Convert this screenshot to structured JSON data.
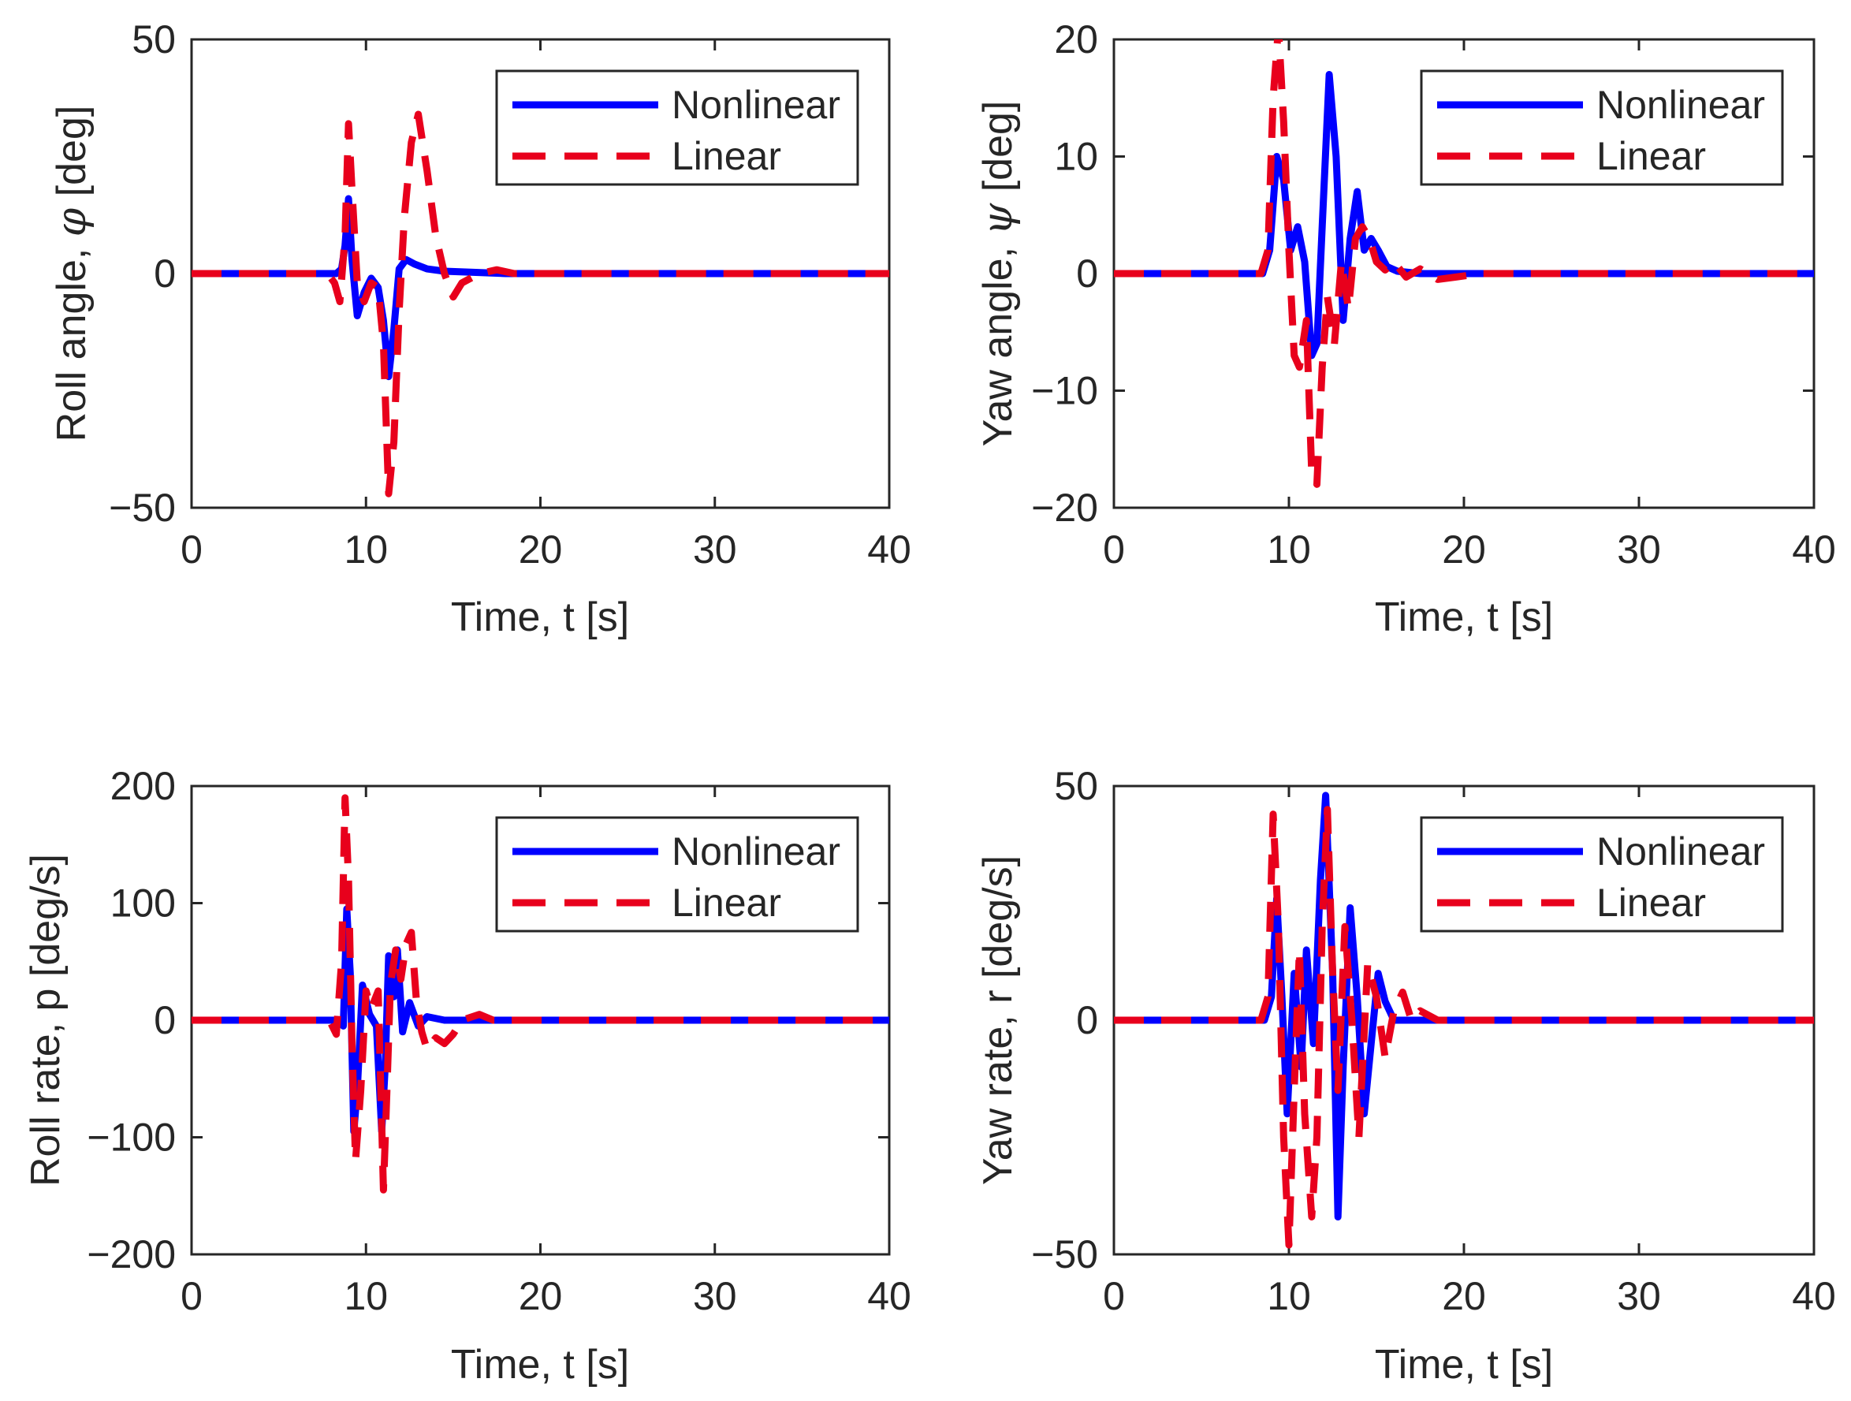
{
  "figure": {
    "panel_count": 4,
    "style": "MATLAB subplot 2x2"
  },
  "colors": {
    "nonlinear": "#0000ff",
    "linear": "#e8001c",
    "axes": "#262626",
    "legend_border": "#262626"
  },
  "chart_data": [
    {
      "type": "line",
      "id": "roll-angle",
      "ylabel_prefix": "Roll angle, ",
      "ylabel_symbol": "φ",
      "ylabel_unit": " [deg]",
      "xlabel": "Time, t [s]",
      "xlim": [
        0,
        40
      ],
      "ylim": [
        -50,
        50
      ],
      "xticks": [
        0,
        10,
        20,
        30,
        40
      ],
      "yticks": [
        -50,
        0,
        50
      ],
      "ytick_labels": [
        "−50",
        "0",
        "50"
      ],
      "legend": {
        "placement": "top-right",
        "entries": [
          "Nonlinear",
          "Linear"
        ]
      },
      "series": [
        {
          "name": "Nonlinear",
          "style": "solid",
          "x": [
            0,
            8.3,
            8.6,
            8.8,
            9.0,
            9.2,
            9.5,
            9.9,
            10.3,
            10.7,
            11.0,
            11.3,
            11.6,
            11.9,
            12.3,
            12.8,
            13.5,
            14.5,
            16,
            18,
            40
          ],
          "y": [
            0,
            0,
            1,
            6,
            16,
            3,
            -9,
            -4,
            -1,
            -3,
            -10,
            -22,
            -12,
            1,
            3,
            2,
            1,
            0.5,
            0.3,
            0,
            0
          ]
        },
        {
          "name": "Linear",
          "style": "dashed",
          "x": [
            0,
            7.8,
            8.2,
            8.5,
            8.8,
            9.0,
            9.2,
            9.5,
            9.9,
            10.3,
            10.7,
            11.0,
            11.3,
            11.6,
            11.9,
            12.2,
            12.6,
            13.0,
            13.5,
            14.0,
            14.5,
            15.0,
            15.5,
            16.5,
            17.5,
            18.5,
            40
          ],
          "y": [
            0,
            0,
            -2,
            -6,
            8,
            32,
            18,
            -2,
            -6,
            -2,
            -3,
            -15,
            -47,
            -36,
            -8,
            12,
            28,
            34,
            22,
            8,
            0,
            -5,
            -2,
            0,
            0.8,
            0,
            0
          ]
        }
      ]
    },
    {
      "type": "line",
      "id": "yaw-angle",
      "ylabel_prefix": "Yaw angle, ",
      "ylabel_symbol": "ψ",
      "ylabel_unit": " [deg]",
      "xlabel": "Time, t [s]",
      "xlim": [
        0,
        40
      ],
      "ylim": [
        -20,
        20
      ],
      "xticks": [
        0,
        10,
        20,
        30,
        40
      ],
      "yticks": [
        -20,
        -10,
        0,
        10,
        20
      ],
      "ytick_labels": [
        "−20",
        "−10",
        "0",
        "10",
        "20"
      ],
      "legend": {
        "placement": "top-right",
        "entries": [
          "Nonlinear",
          "Linear"
        ]
      },
      "series": [
        {
          "name": "Nonlinear",
          "style": "solid",
          "x": [
            0,
            8.5,
            8.9,
            9.3,
            9.7,
            10.1,
            10.5,
            10.9,
            11.3,
            11.6,
            11.9,
            12.3,
            12.7,
            13.1,
            13.5,
            13.9,
            14.3,
            14.7,
            15.1,
            15.6,
            16.2,
            17.5,
            40
          ],
          "y": [
            0,
            0,
            2,
            10,
            8,
            2,
            4,
            1,
            -7,
            -6,
            4,
            17,
            10,
            -4,
            3,
            7,
            2,
            3,
            2,
            0.6,
            0.2,
            0,
            0
          ]
        },
        {
          "name": "Linear",
          "style": "dashed",
          "x": [
            0,
            8.4,
            8.8,
            9.1,
            9.4,
            9.7,
            10.0,
            10.3,
            10.6,
            11.0,
            11.3,
            11.6,
            11.9,
            12.2,
            12.6,
            13.0,
            13.4,
            13.8,
            14.2,
            14.6,
            15.0,
            15.5,
            16.0,
            16.7,
            17.5,
            18.5,
            19.5,
            21,
            40
          ],
          "y": [
            0,
            0,
            2,
            15,
            21,
            13,
            2,
            -7,
            -8,
            -4,
            -17,
            -18,
            -8,
            -2,
            -6,
            1,
            -3,
            3,
            4,
            3,
            1,
            0.3,
            1,
            -0.3,
            0.4,
            -0.5,
            -0.3,
            0,
            0
          ]
        }
      ]
    },
    {
      "type": "line",
      "id": "roll-rate",
      "ylabel_prefix": "Roll rate, p",
      "ylabel_symbol": "",
      "ylabel_unit": " [deg/s]",
      "xlabel": "Time, t [s]",
      "xlim": [
        0,
        40
      ],
      "ylim": [
        -200,
        200
      ],
      "xticks": [
        0,
        10,
        20,
        30,
        40
      ],
      "yticks": [
        -200,
        -100,
        0,
        100,
        200
      ],
      "ytick_labels": [
        "−200",
        "−100",
        "0",
        "100",
        "200"
      ],
      "legend": {
        "placement": "top-right",
        "entries": [
          "Nonlinear",
          "Linear"
        ]
      },
      "series": [
        {
          "name": "Nonlinear",
          "style": "solid",
          "x": [
            0,
            8.4,
            8.7,
            8.9,
            9.1,
            9.3,
            9.5,
            9.8,
            10.2,
            10.6,
            10.9,
            11.1,
            11.3,
            11.6,
            11.8,
            12.1,
            12.5,
            13.0,
            13.5,
            14.5,
            16,
            40
          ],
          "y": [
            0,
            0,
            -5,
            95,
            40,
            -95,
            -60,
            30,
            5,
            -5,
            -95,
            -40,
            55,
            20,
            60,
            -10,
            15,
            -5,
            3,
            0,
            0,
            0
          ]
        },
        {
          "name": "Linear",
          "style": "dashed",
          "x": [
            0,
            7.9,
            8.3,
            8.6,
            8.8,
            9.0,
            9.2,
            9.4,
            9.7,
            10.0,
            10.3,
            10.7,
            11.0,
            11.2,
            11.4,
            11.7,
            12.0,
            12.3,
            12.6,
            12.9,
            13.2,
            13.5,
            14.0,
            14.5,
            15.0,
            15.5,
            16.5,
            17.3,
            18.5,
            40
          ],
          "y": [
            0,
            0,
            -12,
            50,
            190,
            120,
            -20,
            -120,
            -60,
            25,
            10,
            25,
            -145,
            -60,
            30,
            60,
            35,
            65,
            75,
            15,
            -10,
            -25,
            -15,
            -20,
            -12,
            0,
            5,
            0,
            0,
            0
          ]
        }
      ]
    },
    {
      "type": "line",
      "id": "yaw-rate",
      "ylabel_prefix": "Yaw rate, r",
      "ylabel_symbol": "",
      "ylabel_unit": " [deg/s]",
      "xlabel": "Time, t [s]",
      "xlim": [
        0,
        40
      ],
      "ylim": [
        -50,
        50
      ],
      "xticks": [
        0,
        10,
        20,
        30,
        40
      ],
      "yticks": [
        -50,
        0,
        50
      ],
      "ytick_labels": [
        "−50",
        "0",
        "50"
      ],
      "legend": {
        "placement": "top-right",
        "entries": [
          "Nonlinear",
          "Linear"
        ]
      },
      "series": [
        {
          "name": "Nonlinear",
          "style": "solid",
          "x": [
            0,
            8.6,
            9.0,
            9.3,
            9.6,
            9.9,
            10.3,
            10.7,
            11.0,
            11.4,
            11.8,
            12.1,
            12.5,
            12.8,
            13.1,
            13.5,
            13.9,
            14.3,
            14.7,
            15.1,
            15.5,
            16.0,
            17.0,
            40
          ],
          "y": [
            0,
            0,
            5,
            26,
            5,
            -20,
            10,
            -10,
            15,
            -5,
            30,
            48,
            10,
            -42,
            -10,
            24,
            5,
            -20,
            -5,
            10,
            4,
            0,
            0,
            0
          ]
        },
        {
          "name": "Linear",
          "style": "dashed",
          "x": [
            0,
            8.4,
            8.8,
            9.1,
            9.4,
            9.7,
            10.0,
            10.3,
            10.6,
            10.9,
            11.3,
            11.6,
            11.9,
            12.2,
            12.5,
            12.8,
            13.2,
            13.6,
            14.0,
            14.5,
            15.0,
            15.5,
            16.0,
            16.5,
            17.0,
            17.5,
            18.5,
            40
          ],
          "y": [
            0,
            0,
            5,
            44,
            20,
            -25,
            -48,
            -15,
            15,
            -20,
            -42,
            -25,
            20,
            45,
            10,
            -15,
            20,
            0,
            -25,
            12,
            5,
            -8,
            2,
            6,
            0,
            2,
            0,
            0
          ]
        }
      ]
    }
  ]
}
